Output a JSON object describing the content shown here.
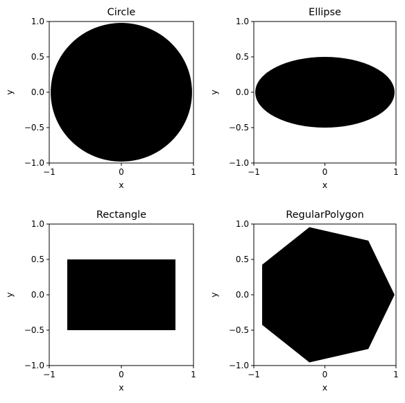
{
  "figure": {
    "background": "#ffffff",
    "shape_color": "#000000"
  },
  "chart_data": [
    {
      "type": "image",
      "title": "Circle",
      "xlabel": "x",
      "ylabel": "y",
      "xlim": [
        -1,
        1
      ],
      "ylim": [
        -1,
        1
      ],
      "xticks": [
        -1,
        0,
        1
      ],
      "yticks": [
        -1.0,
        -0.5,
        0.0,
        0.5,
        1.0
      ],
      "xtick_labels": [
        "−1",
        "0",
        "1"
      ],
      "ytick_labels": [
        "−1.0",
        "−0.5",
        "0.0",
        "0.5",
        "1.0"
      ],
      "grid": false,
      "shape": {
        "kind": "circle",
        "center": [
          0,
          0
        ],
        "radius": 0.98
      }
    },
    {
      "type": "image",
      "title": "Ellipse",
      "xlabel": "x",
      "ylabel": "y",
      "xlim": [
        -1,
        1
      ],
      "ylim": [
        -1,
        1
      ],
      "xticks": [
        -1,
        0,
        1
      ],
      "yticks": [
        -1.0,
        -0.5,
        0.0,
        0.5,
        1.0
      ],
      "xtick_labels": [
        "−1",
        "0",
        "1"
      ],
      "ytick_labels": [
        "−1.0",
        "−0.5",
        "0.0",
        "0.5",
        "1.0"
      ],
      "grid": false,
      "shape": {
        "kind": "ellipse",
        "center": [
          0,
          0
        ],
        "semi_axes": [
          0.98,
          0.5
        ]
      }
    },
    {
      "type": "image",
      "title": "Rectangle",
      "xlabel": "x",
      "ylabel": "y",
      "xlim": [
        -1,
        1
      ],
      "ylim": [
        -1,
        1
      ],
      "xticks": [
        -1,
        0,
        1
      ],
      "yticks": [
        -1.0,
        -0.5,
        0.0,
        0.5,
        1.0
      ],
      "xtick_labels": [
        "−1",
        "0",
        "1"
      ],
      "ytick_labels": [
        "−1.0",
        "−0.5",
        "0.0",
        "0.5",
        "1.0"
      ],
      "grid": false,
      "shape": {
        "kind": "rectangle",
        "x_range": [
          -0.75,
          0.75
        ],
        "y_range": [
          -0.5,
          0.5
        ]
      }
    },
    {
      "type": "image",
      "title": "RegularPolygon",
      "xlabel": "x",
      "ylabel": "y",
      "xlim": [
        -1,
        1
      ],
      "ylim": [
        -1,
        1
      ],
      "xticks": [
        -1,
        0,
        1
      ],
      "yticks": [
        -1.0,
        -0.5,
        0.0,
        0.5,
        1.0
      ],
      "xtick_labels": [
        "−1",
        "0",
        "1"
      ],
      "ytick_labels": [
        "−1.0",
        "−0.5",
        "0.0",
        "0.5",
        "1.0"
      ],
      "grid": false,
      "shape": {
        "kind": "regular_polygon",
        "center": [
          0,
          0
        ],
        "sides": 7,
        "radius": 0.98,
        "start_angle_deg": 0
      }
    }
  ]
}
